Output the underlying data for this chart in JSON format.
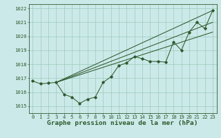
{
  "hours": [
    0,
    1,
    2,
    3,
    4,
    5,
    6,
    7,
    8,
    9,
    10,
    11,
    12,
    13,
    14,
    15,
    16,
    17,
    18,
    19,
    20,
    21,
    22,
    23
  ],
  "pressure_main": [
    1016.8,
    1016.6,
    1016.65,
    1016.7,
    1015.85,
    1015.65,
    1015.2,
    1015.5,
    1015.65,
    1016.7,
    1017.1,
    1017.9,
    1018.1,
    1018.55,
    1018.4,
    1018.2,
    1018.2,
    1018.15,
    1019.6,
    1019.0,
    1020.3,
    1021.0,
    1020.55,
    1021.85
  ],
  "straight_lines": [
    {
      "x": [
        3,
        23
      ],
      "y": [
        1016.7,
        1021.85
      ]
    },
    {
      "x": [
        3,
        23
      ],
      "y": [
        1016.7,
        1021.0
      ]
    },
    {
      "x": [
        3,
        23
      ],
      "y": [
        1016.7,
        1020.3
      ]
    }
  ],
  "background_color": "#cce9e9",
  "grid_color": "#99ccbb",
  "line_color": "#2d5a2d",
  "xlabel": "Graphe pression niveau de la mer (hPa)",
  "ylim_min": 1014.5,
  "ylim_max": 1022.3,
  "yticks": [
    1015,
    1016,
    1017,
    1018,
    1019,
    1020,
    1021
  ],
  "xticks": [
    0,
    1,
    2,
    3,
    4,
    5,
    6,
    7,
    8,
    9,
    10,
    11,
    12,
    13,
    14,
    15,
    16,
    17,
    18,
    19,
    20,
    21,
    22,
    23
  ],
  "tick_label_fontsize": 5.2,
  "xlabel_fontsize": 6.8,
  "line_width": 0.75,
  "marker_size": 1.8
}
